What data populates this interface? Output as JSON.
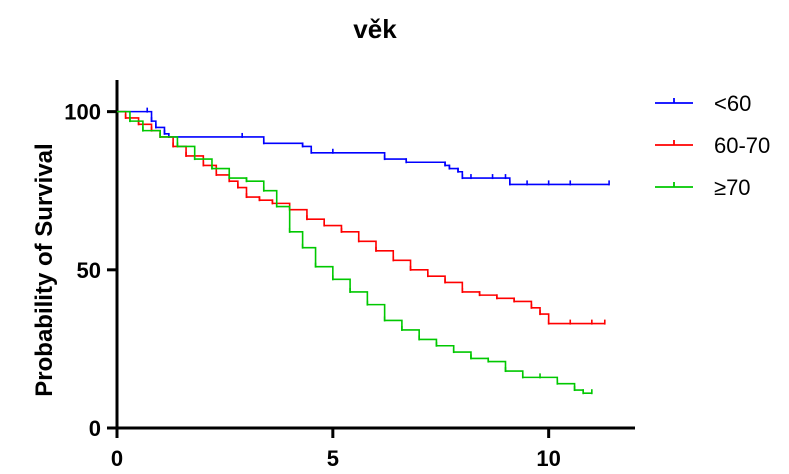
{
  "chart_data": {
    "type": "line",
    "title": "věk",
    "xlabel": "",
    "ylabel": "Probability of Survival",
    "xlim": [
      0,
      12
    ],
    "ylim": [
      0,
      110
    ],
    "x_ticks": [
      0,
      5,
      10
    ],
    "y_ticks": [
      0,
      50,
      100
    ],
    "grid": false,
    "legend_position": "top-right",
    "series": [
      {
        "name": "<60",
        "color": "#0000ff",
        "step": true,
        "x": [
          0,
          0.7,
          0.8,
          0.9,
          1.1,
          1.2,
          2.9,
          3.4,
          4.3,
          4.5,
          5.0,
          6.2,
          6.7,
          7.6,
          7.7,
          7.9,
          8.0,
          8.2,
          8.7,
          9.0,
          9.1,
          9.5,
          10.0,
          10.5,
          11.4
        ],
        "y": [
          100,
          100,
          97,
          95,
          93,
          92,
          92,
          90,
          89,
          87,
          87,
          85,
          84,
          83,
          82,
          81,
          79,
          79,
          79,
          79,
          77,
          77,
          77,
          77,
          77
        ]
      },
      {
        "name": "60-70",
        "color": "#ff0000",
        "step": true,
        "x": [
          0,
          0.2,
          0.5,
          0.8,
          1.0,
          1.3,
          1.6,
          2.0,
          2.3,
          2.6,
          2.8,
          3.0,
          3.3,
          3.6,
          4.0,
          4.4,
          4.8,
          5.2,
          5.6,
          6.0,
          6.4,
          6.8,
          7.2,
          7.6,
          8.0,
          8.4,
          8.8,
          9.2,
          9.6,
          9.8,
          10.0,
          10.5,
          11.0,
          11.3
        ],
        "y": [
          100,
          98,
          96,
          94,
          92,
          89,
          86,
          83,
          80,
          78,
          76,
          73,
          72,
          71,
          69,
          66,
          64,
          62,
          59,
          56,
          53,
          50,
          48,
          46,
          43,
          42,
          41,
          40,
          38,
          36,
          33,
          33,
          33,
          33
        ]
      },
      {
        "name": "≥70",
        "color": "#00c800",
        "step": true,
        "x": [
          0,
          0.3,
          0.6,
          1.0,
          1.4,
          1.8,
          2.2,
          2.6,
          3.0,
          3.4,
          3.7,
          4.0,
          4.3,
          4.6,
          5.0,
          5.4,
          5.8,
          6.2,
          6.6,
          7.0,
          7.4,
          7.8,
          8.2,
          8.6,
          9.0,
          9.4,
          9.8,
          10.2,
          10.6,
          10.8,
          11.0
        ],
        "y": [
          100,
          97,
          94,
          92,
          89,
          85,
          82,
          79,
          78,
          75,
          70,
          62,
          57,
          51,
          47,
          43,
          39,
          34,
          31,
          28,
          26,
          24,
          22,
          21,
          18,
          16,
          16,
          14,
          12,
          11,
          11
        ]
      }
    ]
  }
}
